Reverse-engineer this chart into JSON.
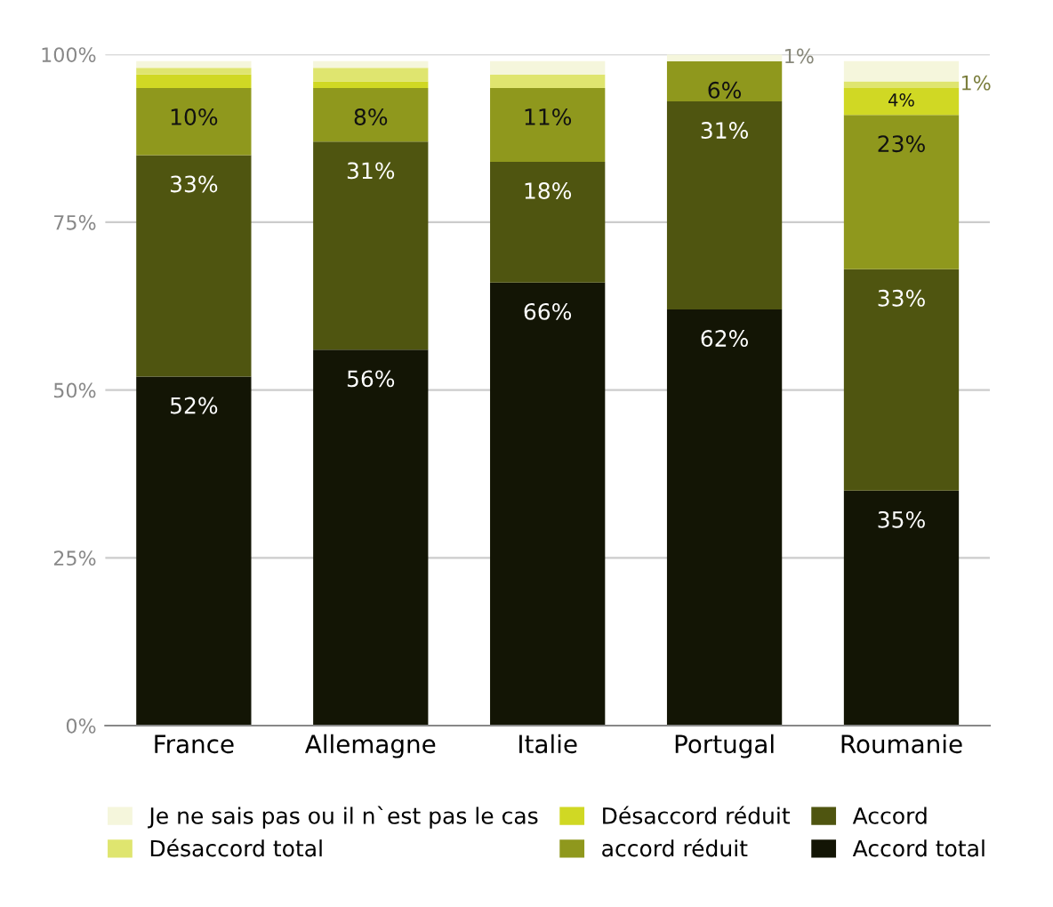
{
  "chart_data": {
    "type": "bar",
    "stacked": true,
    "categories": [
      "France",
      "Allemagne",
      "Italie",
      "Portugal",
      "Roumanie"
    ],
    "series": [
      {
        "name": "Accord total",
        "color": "#131505",
        "values": [
          52,
          56,
          66,
          62,
          35
        ],
        "value_labels": [
          "52%",
          "56%",
          "66%",
          "62%",
          "35%"
        ]
      },
      {
        "name": "Accord",
        "color": "#4f5510",
        "values": [
          33,
          31,
          18,
          31,
          33
        ],
        "value_labels": [
          "33%",
          "31%",
          "18%",
          "31%",
          "33%"
        ]
      },
      {
        "name": "accord réduit",
        "color": "#8f981d",
        "values": [
          10,
          8,
          11,
          6,
          23
        ],
        "value_labels": [
          "10%",
          "8%",
          "11%",
          "6%",
          "23%"
        ]
      },
      {
        "name": "Désaccord réduit",
        "color": "#d0d824",
        "values": [
          2,
          1,
          0,
          0,
          4
        ],
        "value_labels": [
          null,
          null,
          null,
          null,
          "4%"
        ]
      },
      {
        "name": "Désaccord total",
        "color": "#dfe56f",
        "values": [
          1,
          2,
          2,
          0,
          1
        ],
        "value_labels": [
          null,
          null,
          null,
          null,
          "1%"
        ]
      },
      {
        "name": "Je ne sais pas ou il n`est pas le cas",
        "color": "#f5f6dc",
        "values": [
          1,
          1,
          2,
          1,
          3
        ],
        "value_labels": [
          null,
          null,
          null,
          "1%",
          null
        ]
      }
    ],
    "ylim": [
      0,
      100
    ],
    "yticks": [
      {
        "value": 0,
        "label": "0%"
      },
      {
        "value": 25,
        "label": "25%"
      },
      {
        "value": 50,
        "label": "50%"
      },
      {
        "value": 75,
        "label": "75%"
      },
      {
        "value": 100,
        "label": "100%"
      }
    ],
    "grid": "y",
    "legend": "bottom"
  }
}
